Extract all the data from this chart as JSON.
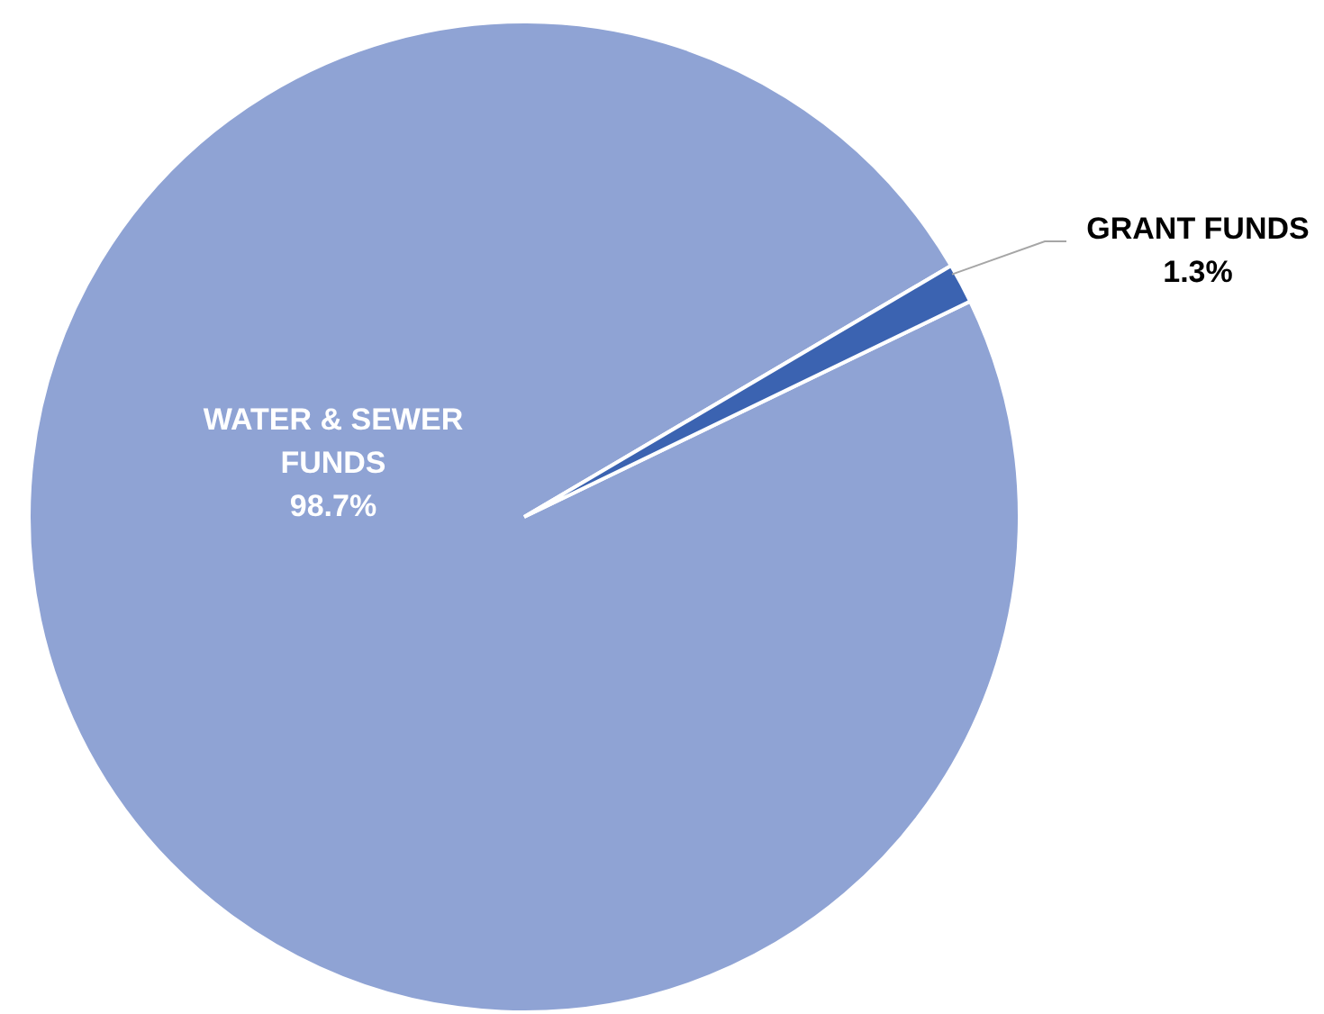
{
  "chart_data": {
    "type": "pie",
    "categories": [
      "WATER & SEWER FUNDS",
      "GRANT FUNDS"
    ],
    "values": [
      98.7,
      1.3
    ],
    "colors": [
      "#8fa3d4",
      "#3b63b1"
    ],
    "value_labels": [
      "98.7%",
      "1.3%"
    ],
    "legend": false
  }
}
